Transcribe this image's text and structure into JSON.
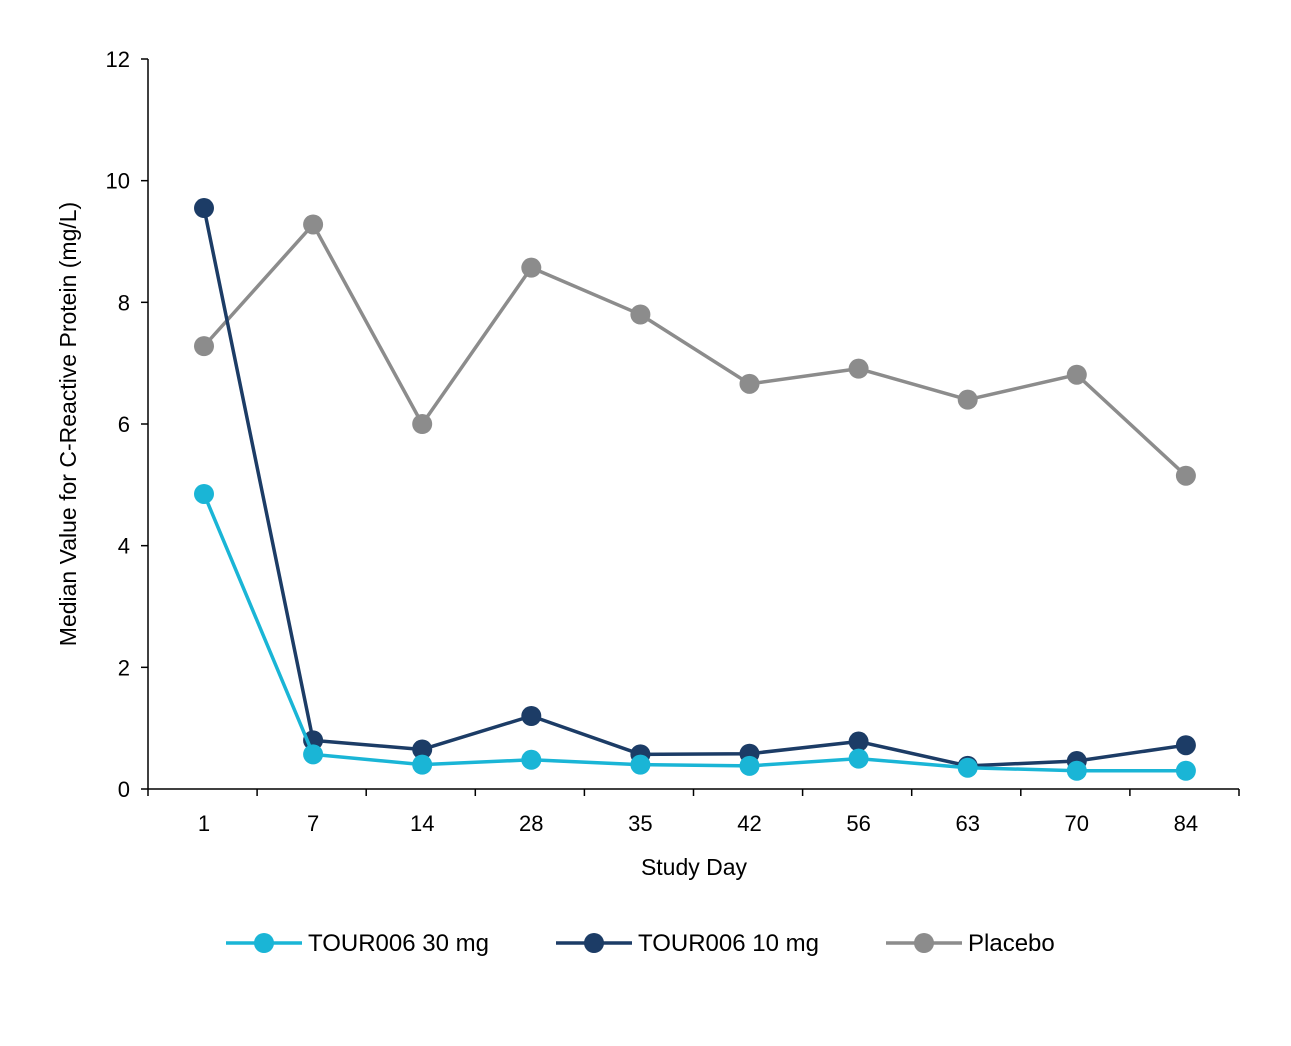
{
  "chart_data": {
    "type": "line",
    "title": "",
    "xlabel": "Study Day",
    "ylabel": "Median Value for C-Reactive Protein (mg/L)",
    "categories": [
      "1",
      "7",
      "14",
      "28",
      "35",
      "42",
      "56",
      "63",
      "70",
      "84"
    ],
    "ylim": [
      0,
      12
    ],
    "yticks": [
      0,
      2,
      4,
      6,
      8,
      10,
      12
    ],
    "grid": false,
    "legend_position": "bottom",
    "series": [
      {
        "name": "TOUR006 30 mg",
        "color": "#1ab5d6",
        "values": [
          4.85,
          0.57,
          0.4,
          0.48,
          0.4,
          0.38,
          0.5,
          0.35,
          0.3,
          0.3
        ]
      },
      {
        "name": "TOUR006 10 mg",
        "color": "#1c3c66",
        "values": [
          9.55,
          0.8,
          0.65,
          1.2,
          0.57,
          0.58,
          0.78,
          0.38,
          0.46,
          0.72
        ]
      },
      {
        "name": "Placebo",
        "color": "#8c8c8c",
        "values": [
          7.28,
          9.28,
          6.0,
          8.57,
          7.8,
          6.66,
          6.91,
          6.4,
          6.81,
          5.15
        ]
      }
    ]
  }
}
